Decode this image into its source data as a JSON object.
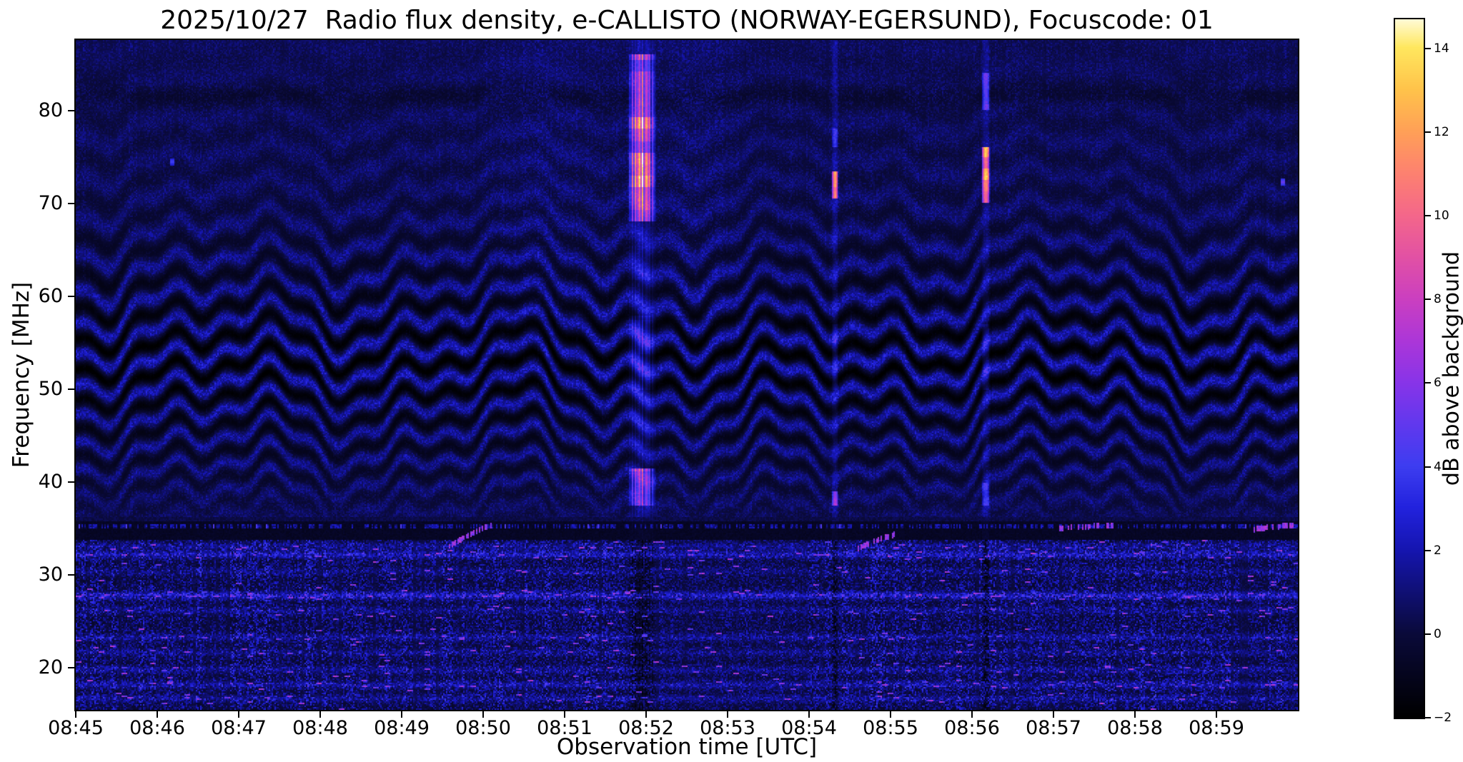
{
  "chart_data": {
    "type": "heatmap",
    "title": "2025/10/27  Radio flux density, e-CALLISTO (NORWAY-EGERSUND), Focuscode: 01",
    "xlabel": "Observation time [UTC]",
    "ylabel": "Frequency [MHz]",
    "x_axis": {
      "range_minutes": [
        0,
        15
      ],
      "start_time_utc": "08:45",
      "tick_minutes": [
        0,
        1,
        2,
        3,
        4,
        5,
        6,
        7,
        8,
        9,
        10,
        11,
        12,
        13,
        14
      ],
      "tick_labels": [
        "08:45",
        "08:46",
        "08:47",
        "08:48",
        "08:49",
        "08:50",
        "08:51",
        "08:52",
        "08:53",
        "08:54",
        "08:55",
        "08:56",
        "08:57",
        "08:58",
        "08:59"
      ]
    },
    "y_axis": {
      "range_mhz": [
        15.5,
        87.6
      ],
      "tick_values": [
        20,
        30,
        40,
        50,
        60,
        70,
        80
      ],
      "tick_labels": [
        "20",
        "30",
        "40",
        "50",
        "60",
        "70",
        "80"
      ]
    },
    "colorbar": {
      "label": "dB above background",
      "vmin": -2,
      "vmax": 14.7,
      "tick_values": [
        -2,
        0,
        2,
        4,
        6,
        8,
        10,
        12,
        14
      ],
      "tick_labels": [
        "−2",
        "0",
        "2",
        "4",
        "6",
        "8",
        "10",
        "12",
        "14"
      ]
    },
    "colormap_stops": [
      [
        0.0,
        "#000000"
      ],
      [
        0.12,
        "#0a0a3a"
      ],
      [
        0.24,
        "#1515b0"
      ],
      [
        0.3,
        "#2222dd"
      ],
      [
        0.36,
        "#3d3df0"
      ],
      [
        0.42,
        "#6138ee"
      ],
      [
        0.48,
        "#8834e8"
      ],
      [
        0.54,
        "#ac36d8"
      ],
      [
        0.6,
        "#cb3fc0"
      ],
      [
        0.66,
        "#e251a4"
      ],
      [
        0.72,
        "#f4678a"
      ],
      [
        0.78,
        "#fd8170"
      ],
      [
        0.84,
        "#ffa057"
      ],
      [
        0.9,
        "#ffc34a"
      ],
      [
        0.96,
        "#ffe75e"
      ],
      [
        1.0,
        "#fffbd5"
      ]
    ],
    "spectrogram_model": {
      "background_db": 0.4,
      "ripple_bands": {
        "spacing_mhz": 2.2,
        "center_mhz": 52.5,
        "strong_width_mhz": 6.5,
        "secondary_centers_mhz": [
          63.5,
          75,
          41.5
        ],
        "wobble_amp_mhz": 2.6,
        "crest_db": 2.3,
        "trough_db": -1.8
      },
      "quiet_band_mhz": [
        33.8,
        36.2
      ],
      "comb_line_mhz": 35.3,
      "dark_band_mhz": 81.6,
      "noisy_band_top_mhz": 33.8,
      "rfi_lines": [
        {
          "mhz": 33.1,
          "amp_db": 0.9
        },
        {
          "mhz": 32.2,
          "amp_db": 1.6
        },
        {
          "mhz": 30.4,
          "amp_db": 0.7
        },
        {
          "mhz": 27.8,
          "amp_db": 1.9
        },
        {
          "mhz": 26.2,
          "amp_db": 0.8
        },
        {
          "mhz": 23.3,
          "amp_db": 1.0
        },
        {
          "mhz": 21.7,
          "amp_db": 0.8
        },
        {
          "mhz": 19.8,
          "amp_db": 0.9
        },
        {
          "mhz": 18.2,
          "amp_db": 1.2
        },
        {
          "mhz": 16.7,
          "amp_db": 1.0
        }
      ],
      "bursts": [
        {
          "time_utc": "08:51:57",
          "t_min": 6.95,
          "half_width_min": 0.17,
          "column_db": 1.5,
          "below_quiet_db": -1.4,
          "striped": true,
          "blobs": [
            {
              "f_lo": 68.0,
              "f_hi": 86.0,
              "db_lo": 6.0,
              "db_hi": 15.0,
              "segmented": true
            },
            {
              "f_lo": 58.0,
              "f_hi": 68.0,
              "db_lo": 1.2,
              "db_hi": 2.6,
              "segmented": true
            },
            {
              "f_lo": 50.0,
              "f_hi": 58.0,
              "db_lo": 2.8,
              "db_hi": 4.2,
              "segmented": true
            },
            {
              "f_lo": 44.0,
              "f_hi": 50.0,
              "db_lo": 1.8,
              "db_hi": 2.6,
              "segmented": false
            },
            {
              "f_lo": 37.5,
              "f_hi": 41.5,
              "db_lo": 4.5,
              "db_hi": 10.0,
              "segmented": true
            }
          ]
        },
        {
          "time_utc": "08:54:19",
          "t_min": 9.32,
          "half_width_min": 0.04,
          "column_db": 1.1,
          "below_quiet_db": -1.2,
          "striped": false,
          "blobs": [
            {
              "f_lo": 70.5,
              "f_hi": 73.5,
              "db_lo": 10.0,
              "db_hi": 12.5,
              "segmented": true
            },
            {
              "f_lo": 76.0,
              "f_hi": 78.0,
              "db_lo": 3.0,
              "db_hi": 4.0,
              "segmented": false
            },
            {
              "f_lo": 50.0,
              "f_hi": 57.0,
              "db_lo": 1.8,
              "db_hi": 2.4,
              "segmented": false
            },
            {
              "f_lo": 37.5,
              "f_hi": 39.0,
              "db_lo": 5.5,
              "db_hi": 7.5,
              "segmented": false
            }
          ]
        },
        {
          "time_utc": "08:56:10",
          "t_min": 11.17,
          "half_width_min": 0.05,
          "column_db": 1.0,
          "below_quiet_db": -1.2,
          "striped": false,
          "blobs": [
            {
              "f_lo": 70.0,
              "f_hi": 76.0,
              "db_lo": 8.5,
              "db_hi": 13.5,
              "segmented": true
            },
            {
              "f_lo": 80.0,
              "f_hi": 84.0,
              "db_lo": 4.0,
              "db_hi": 5.5,
              "segmented": false
            },
            {
              "f_lo": 50.0,
              "f_hi": 57.0,
              "db_lo": 1.8,
              "db_hi": 2.4,
              "segmented": false
            },
            {
              "f_lo": 37.5,
              "f_hi": 40.0,
              "db_lo": 3.0,
              "db_hi": 4.5,
              "segmented": false
            }
          ]
        }
      ],
      "drift_arcs": [
        {
          "t_start_min": 4.55,
          "t_end_min": 5.1,
          "f_start_mhz": 32.8,
          "f_end_mhz": 35.4
        },
        {
          "t_start_min": 9.6,
          "t_end_min": 10.1,
          "f_start_mhz": 32.8,
          "f_end_mhz": 34.5
        },
        {
          "t_start_min": 12.05,
          "t_end_min": 12.75,
          "f_start_mhz": 35.0,
          "f_end_mhz": 35.4
        },
        {
          "t_start_min": 14.45,
          "t_end_min": 14.95,
          "f_start_mhz": 34.9,
          "f_end_mhz": 35.4
        }
      ],
      "point_events": [
        {
          "t_min": 1.18,
          "mhz": 74.5,
          "db": 4.2
        },
        {
          "t_min": 14.82,
          "mhz": 72.3,
          "db": 5.2
        }
      ]
    }
  }
}
